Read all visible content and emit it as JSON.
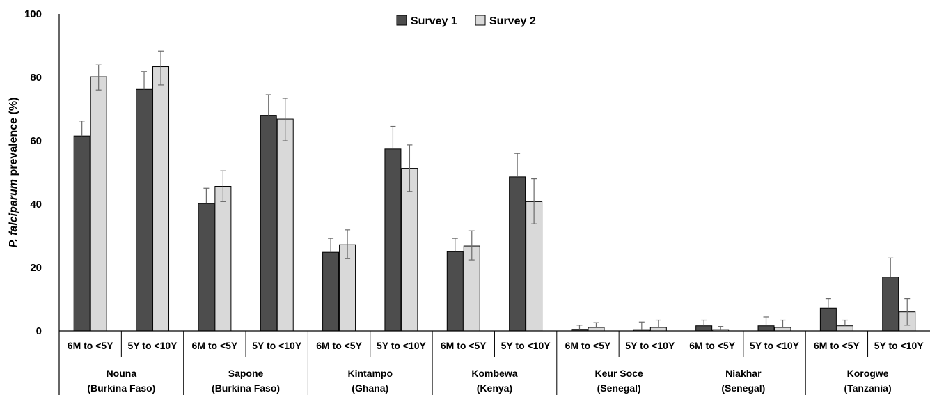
{
  "chart_data": {
    "type": "bar",
    "ylabel_italic": "P. falciparum",
    "ylabel_rest": " prevalence (%)",
    "ylim": [
      0,
      100
    ],
    "yticks": [
      0,
      20,
      40,
      60,
      80,
      100
    ],
    "legend_position": "top-center",
    "grid": false,
    "age_groups": [
      "6M to <5Y",
      "5Y to <10Y"
    ],
    "sites": [
      {
        "name": "Nouna",
        "country": "(Burkina Faso)"
      },
      {
        "name": "Sapone",
        "country": "(Burkina Faso)"
      },
      {
        "name": "Kintampo",
        "country": "(Ghana)"
      },
      {
        "name": "Kombewa",
        "country": "(Kenya)"
      },
      {
        "name": "Keur Soce",
        "country": "(Senegal)"
      },
      {
        "name": "Niakhar",
        "country": "(Senegal)"
      },
      {
        "name": "Korogwe",
        "country": "(Tanzania)"
      }
    ],
    "series": [
      {
        "name": "Survey 1",
        "color": "#4d4d4d",
        "values": [
          61.5,
          76.2,
          40.2,
          68.0,
          24.8,
          57.4,
          25.0,
          48.6,
          0.5,
          0.4,
          1.6,
          1.6,
          7.2,
          17.0
        ],
        "err_high": [
          66.2,
          81.8,
          45.0,
          74.5,
          29.2,
          64.5,
          29.2,
          56.0,
          1.8,
          2.8,
          3.4,
          4.4,
          10.2,
          23.0
        ]
      },
      {
        "name": "Survey 2",
        "color": "#d9d9d9",
        "values": [
          80.2,
          83.4,
          45.6,
          66.8,
          27.2,
          51.3,
          26.8,
          40.8,
          1.1,
          1.1,
          0.4,
          1.1,
          1.6,
          6.0
        ],
        "err_high": [
          83.9,
          88.3,
          50.5,
          73.4,
          31.9,
          58.7,
          31.6,
          48.0,
          2.6,
          3.4,
          1.4,
          3.4,
          3.4,
          10.2
        ],
        "err_low": [
          76.0,
          77.6,
          40.8,
          60.0,
          22.8,
          44.0,
          22.4,
          33.8,
          null,
          null,
          null,
          null,
          null,
          1.8
        ]
      }
    ]
  }
}
